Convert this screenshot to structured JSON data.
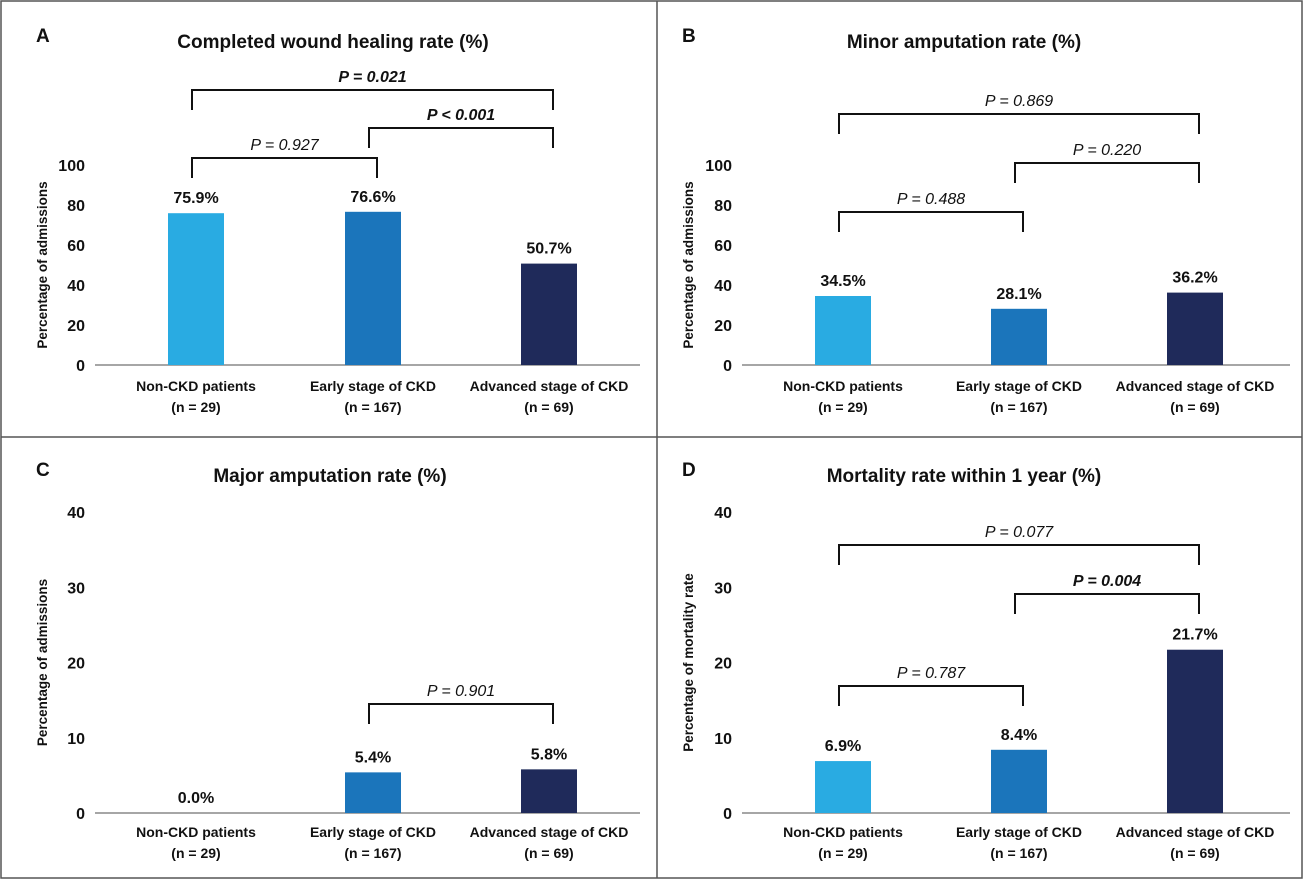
{
  "colors": {
    "non_ckd": "#29abe2",
    "early_ckd": "#1b75bb",
    "advanced_ckd": "#1f2a5a",
    "border": "#555555"
  },
  "chart_data": [
    {
      "panel": "A",
      "type": "bar",
      "title": "Completed wound healing rate (%)",
      "ylabel": "Percentage of admissions",
      "ylim": [
        0,
        100
      ],
      "yticks": [
        "0",
        "20",
        "40",
        "60",
        "80",
        "100"
      ],
      "categories": [
        {
          "name": "Non-CKD patients",
          "n": "(n = 29)"
        },
        {
          "name": "Early stage of CKD",
          "n": "(n = 167)"
        },
        {
          "name": "Advanced stage of CKD",
          "n": "(n = 69)"
        }
      ],
      "values": [
        75.9,
        76.6,
        50.7
      ],
      "data_labels": [
        "75.9%",
        "76.6%",
        "50.7%"
      ],
      "comparisons": [
        {
          "from": 0,
          "to": 1,
          "label": "P = 0.927",
          "bold": false,
          "level": 1
        },
        {
          "from": 1,
          "to": 2,
          "label": "P < 0.001",
          "bold": true,
          "level": 2
        },
        {
          "from": 0,
          "to": 2,
          "label": "P = 0.021",
          "bold": true,
          "level": 3
        }
      ]
    },
    {
      "panel": "B",
      "type": "bar",
      "title": "Minor amputation rate (%)",
      "ylabel": "Percentage of admissions",
      "ylim": [
        0,
        100
      ],
      "yticks": [
        "0",
        "20",
        "40",
        "60",
        "80",
        "100"
      ],
      "categories": [
        {
          "name": "Non-CKD patients",
          "n": "(n = 29)"
        },
        {
          "name": "Early stage of CKD",
          "n": "(n = 167)"
        },
        {
          "name": "Advanced stage of CKD",
          "n": "(n = 69)"
        }
      ],
      "values": [
        34.5,
        28.1,
        36.2
      ],
      "data_labels": [
        "34.5%",
        "28.1%",
        "36.2%"
      ],
      "comparisons": [
        {
          "from": 0,
          "to": 1,
          "label": "P = 0.488",
          "bold": false,
          "level": 1
        },
        {
          "from": 1,
          "to": 2,
          "label": "P = 0.220",
          "bold": false,
          "level": 2
        },
        {
          "from": 0,
          "to": 2,
          "label": "P = 0.869",
          "bold": false,
          "level": 3
        }
      ]
    },
    {
      "panel": "C",
      "type": "bar",
      "title": "Major amputation rate (%)",
      "ylabel": "Percentage of admissions",
      "ylim": [
        0,
        40
      ],
      "yticks": [
        "0",
        "10",
        "20",
        "30",
        "40"
      ],
      "categories": [
        {
          "name": "Non-CKD patients",
          "n": "(n = 29)"
        },
        {
          "name": "Early stage of CKD",
          "n": "(n = 167)"
        },
        {
          "name": "Advanced stage of CKD",
          "n": "(n = 69)"
        }
      ],
      "values": [
        0.0,
        5.4,
        5.8
      ],
      "data_labels": [
        "0.0%",
        "5.4%",
        "5.8%"
      ],
      "comparisons": [
        {
          "from": 1,
          "to": 2,
          "label": "P = 0.901",
          "bold": false,
          "level": 1
        }
      ]
    },
    {
      "panel": "D",
      "type": "bar",
      "title": "Mortality rate within 1 year (%)",
      "ylabel": "Percentage of mortality rate",
      "ylim": [
        0,
        40
      ],
      "yticks": [
        "0",
        "10",
        "20",
        "30",
        "40"
      ],
      "categories": [
        {
          "name": "Non-CKD patients",
          "n": "(n = 29)"
        },
        {
          "name": "Early stage of CKD",
          "n": "(n = 167)"
        },
        {
          "name": "Advanced stage of CKD",
          "n": "(n = 69)"
        }
      ],
      "values": [
        6.9,
        8.4,
        21.7
      ],
      "data_labels": [
        "6.9%",
        "8.4%",
        "21.7%"
      ],
      "comparisons": [
        {
          "from": 0,
          "to": 1,
          "label": "P = 0.787",
          "bold": false,
          "level": 1
        },
        {
          "from": 1,
          "to": 2,
          "label": "P = 0.004",
          "bold": true,
          "level": 2
        },
        {
          "from": 0,
          "to": 2,
          "label": "P = 0.077",
          "bold": false,
          "level": 3
        }
      ]
    }
  ]
}
